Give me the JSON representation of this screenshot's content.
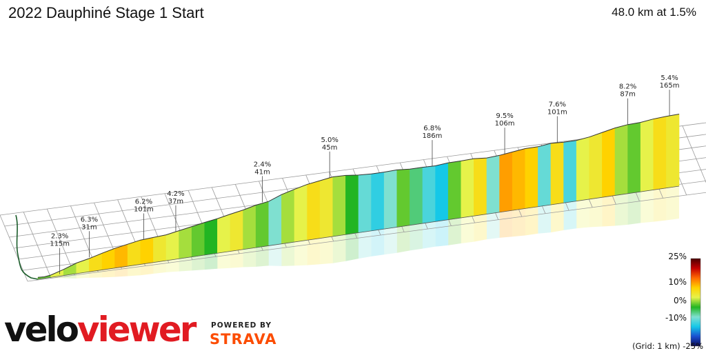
{
  "header": {
    "title": "2022 Dauphiné Stage 1 Start",
    "summary": "48.0 km at 1.5%"
  },
  "chart_data": {
    "type": "area",
    "title": "2022 Dauphiné Stage 1 Start",
    "distance_km": 48.0,
    "average_gradient_pct": 1.5,
    "xlabel": "",
    "ylabel": "",
    "grid": true,
    "grid_spacing": "1 km",
    "profile": [
      {
        "t": 0.0,
        "h": 5,
        "g": 1
      },
      {
        "t": 0.01,
        "h": 4,
        "g": 1
      },
      {
        "t": 0.02,
        "h": 6,
        "g": 3
      },
      {
        "t": 0.04,
        "h": 16,
        "g": 2
      },
      {
        "t": 0.06,
        "h": 28,
        "g": 3
      },
      {
        "t": 0.08,
        "h": 35,
        "g": 5
      },
      {
        "t": 0.1,
        "h": 44,
        "g": 6
      },
      {
        "t": 0.12,
        "h": 52,
        "g": 7
      },
      {
        "t": 0.14,
        "h": 58,
        "g": 5
      },
      {
        "t": 0.16,
        "h": 64,
        "g": 6
      },
      {
        "t": 0.18,
        "h": 66,
        "g": 4
      },
      {
        "t": 0.2,
        "h": 68,
        "g": 3
      },
      {
        "t": 0.22,
        "h": 74,
        "g": 2
      },
      {
        "t": 0.24,
        "h": 80,
        "g": 1
      },
      {
        "t": 0.26,
        "h": 86,
        "g": 0
      },
      {
        "t": 0.28,
        "h": 91,
        "g": 3
      },
      {
        "t": 0.3,
        "h": 98,
        "g": 4
      },
      {
        "t": 0.32,
        "h": 104,
        "g": 2
      },
      {
        "t": 0.34,
        "h": 112,
        "g": 1
      },
      {
        "t": 0.36,
        "h": 117,
        "g": -2
      },
      {
        "t": 0.38,
        "h": 130,
        "g": 2
      },
      {
        "t": 0.4,
        "h": 139,
        "g": 3
      },
      {
        "t": 0.42,
        "h": 147,
        "g": 5
      },
      {
        "t": 0.44,
        "h": 152,
        "g": 4
      },
      {
        "t": 0.46,
        "h": 157,
        "g": 2
      },
      {
        "t": 0.48,
        "h": 156,
        "g": 0
      },
      {
        "t": 0.5,
        "h": 152,
        "g": -3
      },
      {
        "t": 0.52,
        "h": 150,
        "g": -5
      },
      {
        "t": 0.54,
        "h": 150,
        "g": -2
      },
      {
        "t": 0.56,
        "h": 151,
        "g": 1
      },
      {
        "t": 0.58,
        "h": 148,
        "g": -1
      },
      {
        "t": 0.6,
        "h": 148,
        "g": -4
      },
      {
        "t": 0.62,
        "h": 147,
        "g": -6
      },
      {
        "t": 0.64,
        "h": 150,
        "g": 1
      },
      {
        "t": 0.66,
        "h": 150,
        "g": 3
      },
      {
        "t": 0.68,
        "h": 151,
        "g": 5
      },
      {
        "t": 0.7,
        "h": 148,
        "g": -2
      },
      {
        "t": 0.72,
        "h": 150,
        "g": 8
      },
      {
        "t": 0.74,
        "h": 154,
        "g": 7
      },
      {
        "t": 0.76,
        "h": 158,
        "g": 6
      },
      {
        "t": 0.78,
        "h": 158,
        "g": -3
      },
      {
        "t": 0.8,
        "h": 162,
        "g": 5
      },
      {
        "t": 0.82,
        "h": 160,
        "g": -4
      },
      {
        "t": 0.84,
        "h": 160,
        "g": 3
      },
      {
        "t": 0.86,
        "h": 164,
        "g": 4
      },
      {
        "t": 0.88,
        "h": 171,
        "g": 6
      },
      {
        "t": 0.9,
        "h": 178,
        "g": 2
      },
      {
        "t": 0.92,
        "h": 182,
        "g": 1
      },
      {
        "t": 0.94,
        "h": 183,
        "g": 3
      },
      {
        "t": 0.96,
        "h": 187,
        "g": 5
      },
      {
        "t": 0.98,
        "h": 189,
        "g": 4
      },
      {
        "t": 1.0,
        "h": 190,
        "g": 2
      }
    ],
    "annotations": [
      {
        "t": 0.034,
        "h": 5,
        "gradient": "2.3%",
        "length": "115m"
      },
      {
        "t": 0.08,
        "h": 38,
        "gradient": "6.3%",
        "length": "31m"
      },
      {
        "t": 0.165,
        "h": 64,
        "gradient": "6.2%",
        "length": "101m"
      },
      {
        "t": 0.215,
        "h": 73,
        "gradient": "4.2%",
        "length": "37m"
      },
      {
        "t": 0.35,
        "h": 117,
        "gradient": "2.4%",
        "length": "41m"
      },
      {
        "t": 0.455,
        "h": 156,
        "gradient": "5.0%",
        "length": "45m"
      },
      {
        "t": 0.615,
        "h": 147,
        "gradient": "6.8%",
        "length": "186m"
      },
      {
        "t": 0.728,
        "h": 152,
        "gradient": "9.5%",
        "length": "106m"
      },
      {
        "t": 0.81,
        "h": 162,
        "gradient": "7.6%",
        "length": "101m"
      },
      {
        "t": 0.92,
        "h": 182,
        "gradient": "8.2%",
        "length": "87m"
      },
      {
        "t": 0.985,
        "h": 189,
        "gradient": "5.4%",
        "length": "165m"
      }
    ],
    "legend": {
      "placement": "bottom-right",
      "ticks": [
        "25%",
        "10%",
        "0%",
        "-10%",
        "-25%"
      ],
      "stops": [
        "#4a0000",
        "#c40000",
        "#ff6a00",
        "#ffd200",
        "#e6f24a",
        "#22b522",
        "#7fe0d0",
        "#15c8e8",
        "#1a4fd0",
        "#0a0a5a"
      ]
    }
  },
  "footer": {
    "logo_part1": "velo",
    "logo_part2": "viewer",
    "powered_by": "POWERED BY",
    "strava": "STRAVA",
    "grid_note": "(Grid: 1 km) -25%"
  }
}
